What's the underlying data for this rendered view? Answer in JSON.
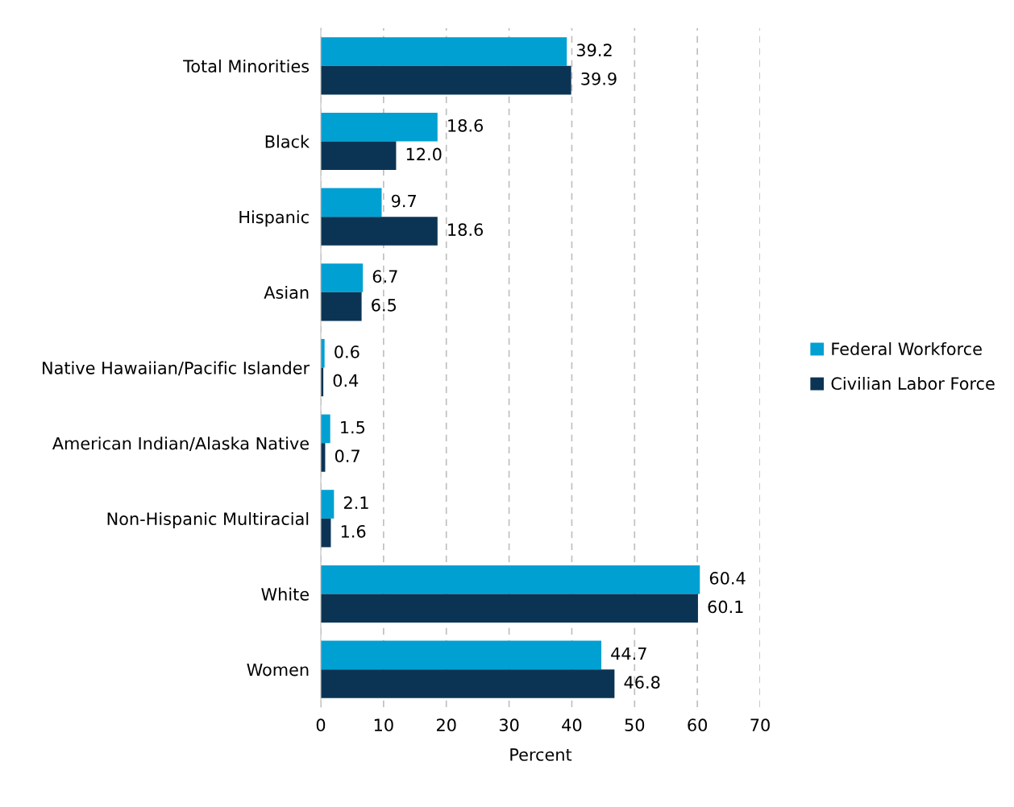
{
  "chart_data": {
    "type": "bar",
    "orientation": "horizontal",
    "categories": [
      "Total Minorities",
      "Black",
      "Hispanic",
      "Asian",
      "Native Hawaiian/Pacific Islander",
      "American Indian/Alaska Native",
      "Non-Hispanic Multiracial",
      "White",
      "Women"
    ],
    "series": [
      {
        "name": "Federal Workforce",
        "color": "#00a0d2",
        "values": [
          39.2,
          18.6,
          9.7,
          6.7,
          0.6,
          1.5,
          2.1,
          60.4,
          44.7
        ],
        "value_labels": [
          "39.2",
          "18.6",
          "9.7",
          "6.7",
          "0.6",
          "1.5",
          "2.1",
          "60.4",
          "44.7"
        ]
      },
      {
        "name": "Civilian Labor Force",
        "color": "#0b3454",
        "values": [
          39.9,
          12.0,
          18.6,
          6.5,
          0.4,
          0.7,
          1.6,
          60.1,
          46.8
        ],
        "value_labels": [
          "39.9",
          "12.0",
          "18.6",
          "6.5",
          "0.4",
          "0.7",
          "1.6",
          "60.1",
          "46.8"
        ]
      }
    ],
    "xlabel": "Percent",
    "xlim": [
      0,
      70
    ],
    "xticks": [
      0,
      10,
      20,
      30,
      40,
      50,
      60,
      70
    ],
    "grid": "x",
    "legend": "right"
  }
}
